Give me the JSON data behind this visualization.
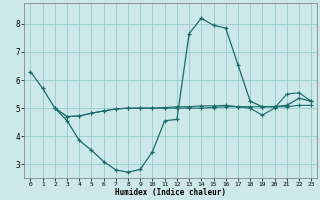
{
  "xlabel": "Humidex (Indice chaleur)",
  "background_color": "#cce8e8",
  "grid_color": "#99cccc",
  "line_color": "#1a6b6b",
  "xlim": [
    -0.5,
    23.5
  ],
  "ylim": [
    2.5,
    8.75
  ],
  "yticks": [
    3,
    4,
    5,
    6,
    7,
    8
  ],
  "xticks": [
    0,
    1,
    2,
    3,
    4,
    5,
    6,
    7,
    8,
    9,
    10,
    11,
    12,
    13,
    14,
    15,
    16,
    17,
    18,
    19,
    20,
    21,
    22,
    23
  ],
  "curve1_x": [
    0,
    1,
    2,
    3,
    4,
    5,
    6,
    7,
    8,
    9,
    10,
    11,
    12,
    13,
    14,
    15,
    16,
    17,
    18,
    19,
    20,
    21,
    22,
    23
  ],
  "curve1_y": [
    6.3,
    5.7,
    5.0,
    4.55,
    3.85,
    3.5,
    3.1,
    2.8,
    2.72,
    2.82,
    3.45,
    4.55,
    4.6,
    7.65,
    8.2,
    7.95,
    7.85,
    6.55,
    5.25,
    5.05,
    5.05,
    5.1,
    5.35,
    5.25
  ],
  "curve2_x": [
    2,
    3,
    4,
    5,
    6,
    7,
    8,
    9,
    10,
    11,
    12,
    13,
    14,
    15,
    16,
    17,
    18,
    19,
    20,
    21,
    22,
    23
  ],
  "curve2_y": [
    5.0,
    4.7,
    4.72,
    4.82,
    4.9,
    4.97,
    5.0,
    5.0,
    5.0,
    5.0,
    5.0,
    5.0,
    5.0,
    5.02,
    5.05,
    5.05,
    5.05,
    5.05,
    5.05,
    5.05,
    5.1,
    5.1
  ],
  "curve3_x": [
    2,
    3,
    4,
    5,
    6,
    7,
    8,
    9,
    10,
    11,
    12,
    13,
    14,
    15,
    16,
    17,
    18,
    19,
    20,
    21,
    22,
    23
  ],
  "curve3_y": [
    5.0,
    4.7,
    4.72,
    4.82,
    4.9,
    4.97,
    5.0,
    5.0,
    5.0,
    5.02,
    5.05,
    5.05,
    5.08,
    5.08,
    5.1,
    5.05,
    5.0,
    4.75,
    5.0,
    5.5,
    5.55,
    5.25
  ]
}
